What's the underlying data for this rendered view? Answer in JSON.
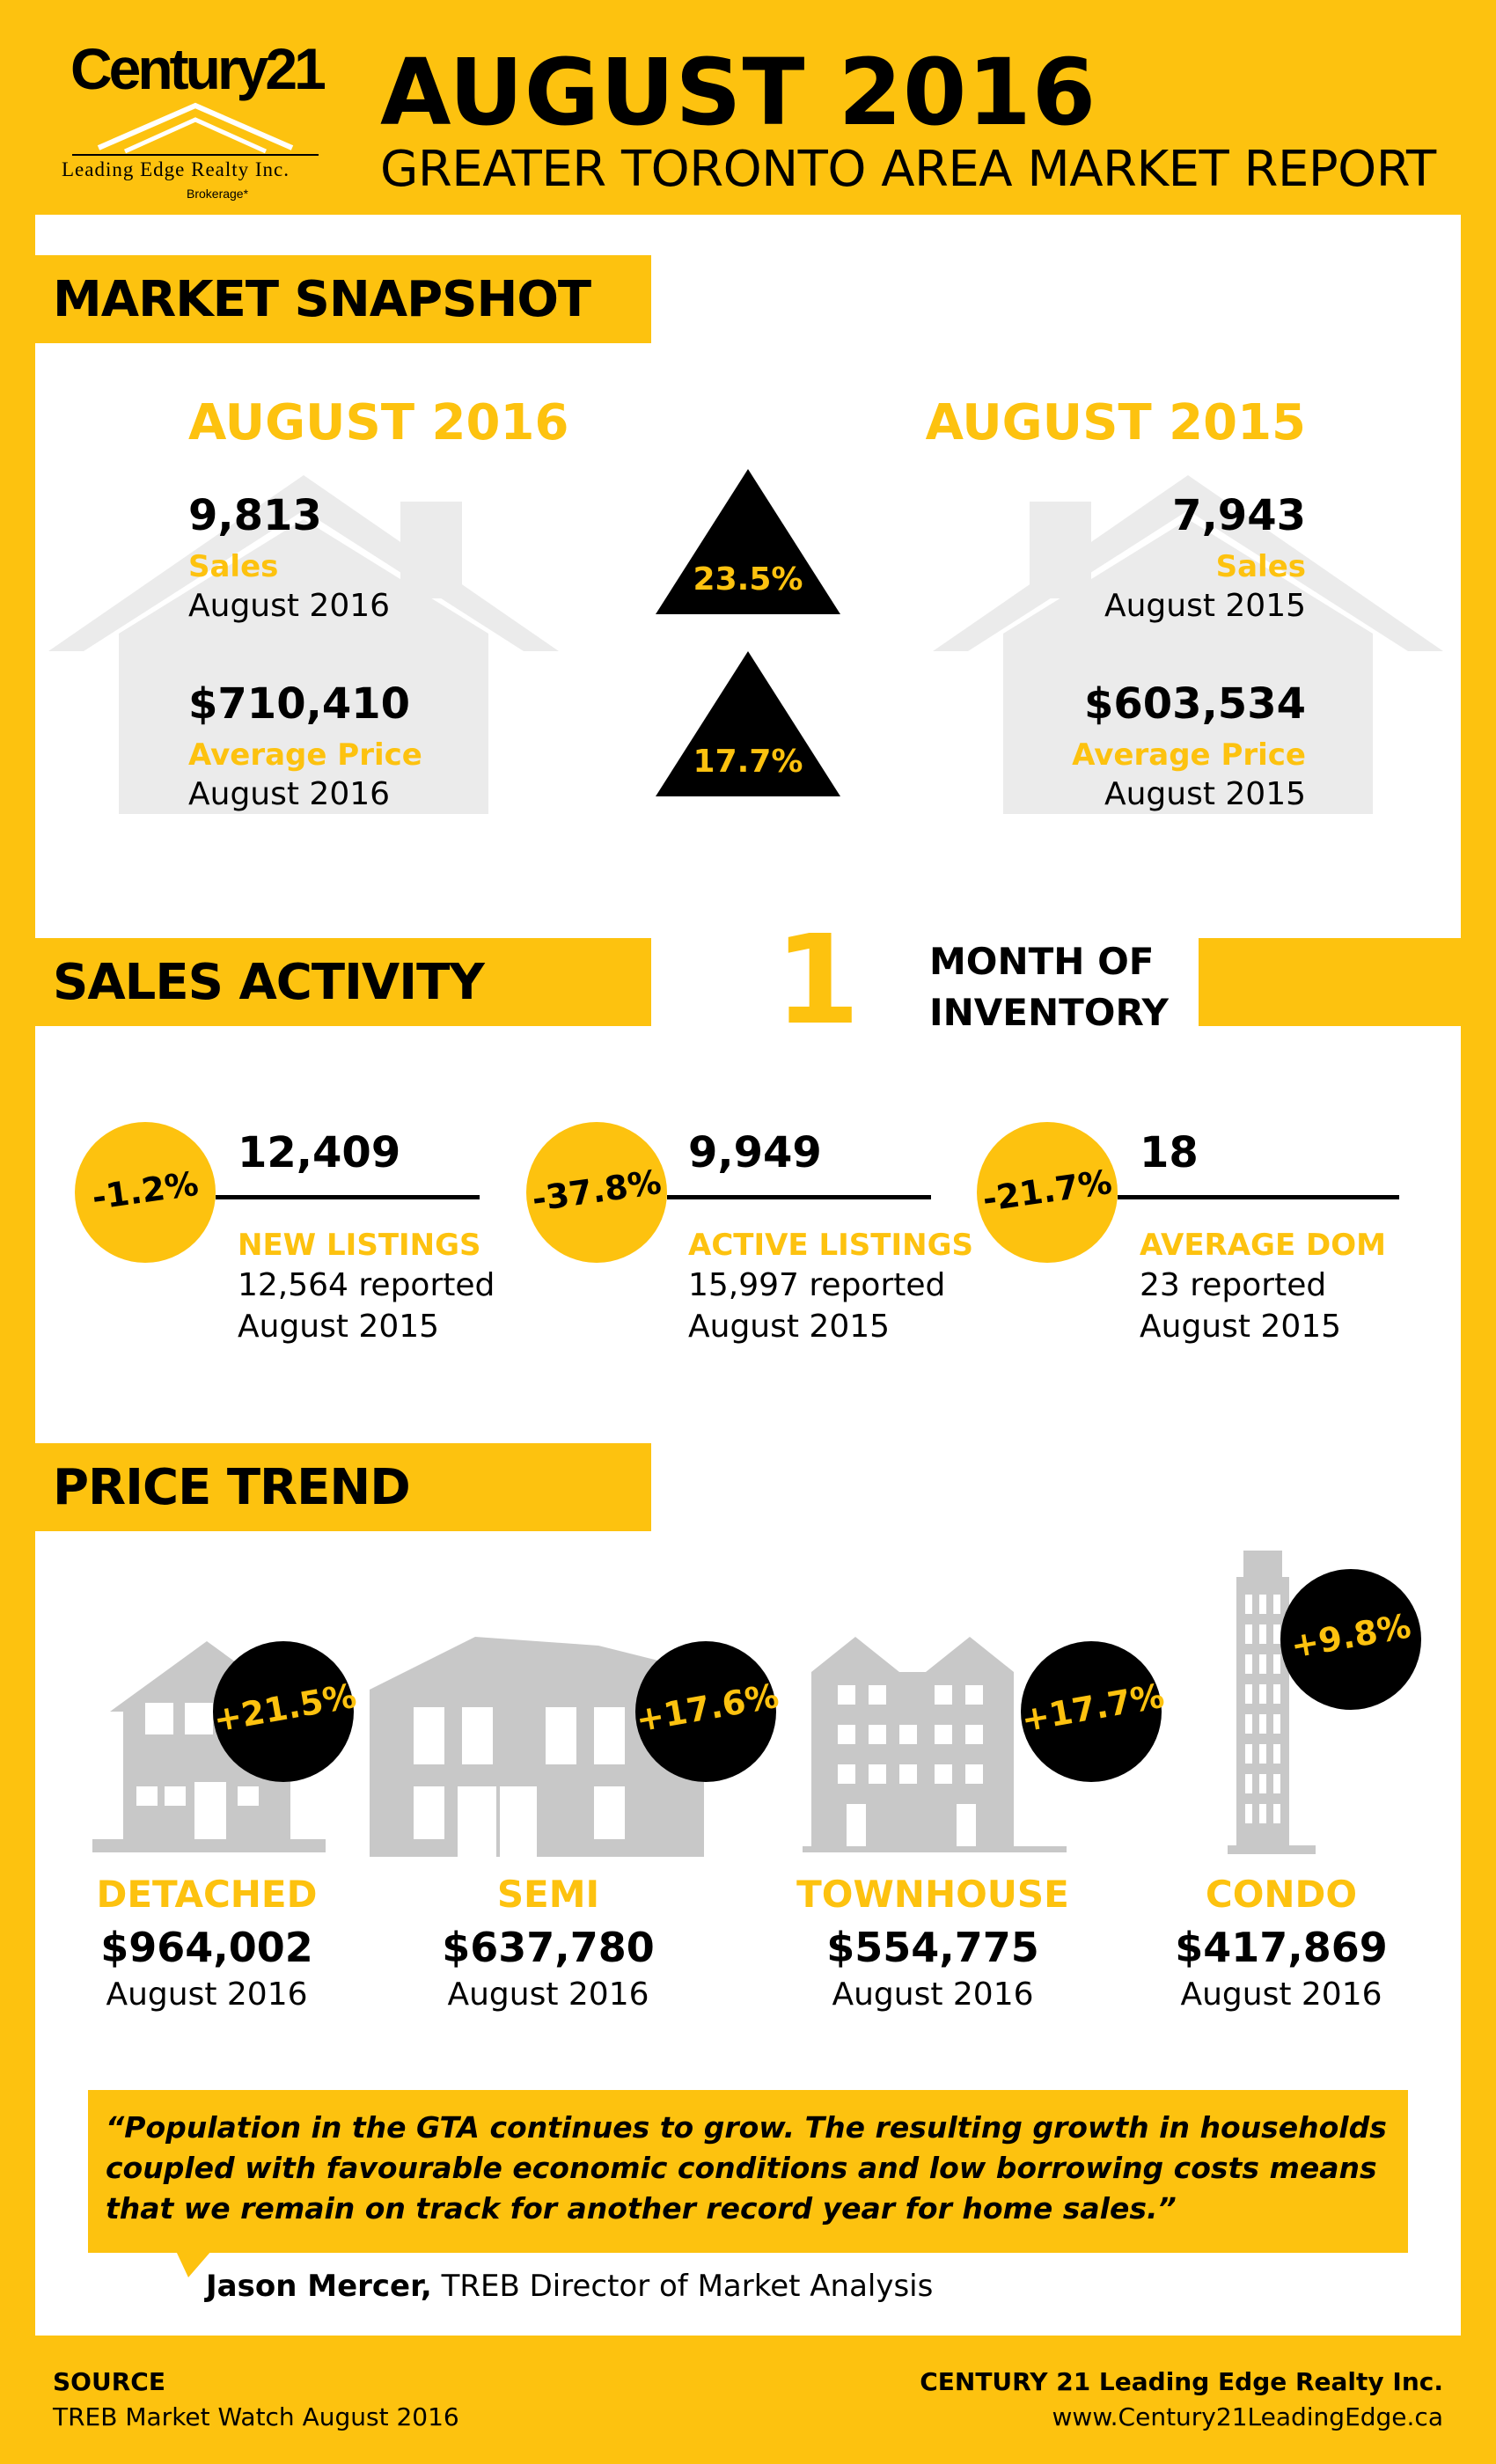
{
  "header": {
    "logo": {
      "brand": "Century21",
      "line1": "Leading Edge Realty Inc.",
      "line2": "Brokerage*"
    },
    "title": "AUGUST 2016",
    "subtitle": "GREATER TORONTO AREA MARKET REPORT"
  },
  "snapshot": {
    "section_title": "MARKET SNAPSHOT",
    "left": {
      "heading": "AUGUST 2016",
      "sales_value": "9,813",
      "sales_label": "Sales",
      "sales_period": "August 2016",
      "price_value": "$710,410",
      "price_label": "Average Price",
      "price_period": "August 2016"
    },
    "right": {
      "heading": "AUGUST 2015",
      "sales_value": "7,943",
      "sales_label": "Sales",
      "sales_period": "August 2015",
      "price_value": "$603,534",
      "price_label": "Average Price",
      "price_period": "August 2015"
    },
    "change_sales": "23.5%",
    "change_price": "17.7%"
  },
  "sales_activity": {
    "section_title": "SALES ACTIVITY",
    "inventory_number": "1",
    "inventory_line1": "MONTH OF",
    "inventory_line2": "INVENTORY",
    "stats": [
      {
        "change": "-1.2%",
        "value": "12,409",
        "label": "NEW LISTINGS",
        "reported": "12,564 reported",
        "period": "August 2015"
      },
      {
        "change": "-37.8%",
        "value": "9,949",
        "label": "ACTIVE LISTINGS",
        "reported": "15,997 reported",
        "period": "August 2015"
      },
      {
        "change": "-21.7%",
        "value": "18",
        "label": "AVERAGE DOM",
        "reported": "23 reported",
        "period": "August 2015"
      }
    ]
  },
  "price_trend": {
    "section_title": "PRICE TREND",
    "types": [
      {
        "change": "+21.5%",
        "label": "DETACHED",
        "price": "$964,002",
        "period": "August 2016"
      },
      {
        "change": "+17.6%",
        "label": "SEMI",
        "price": "$637,780",
        "period": "August 2016"
      },
      {
        "change": "+17.7%",
        "label": "TOWNHOUSE",
        "price": "$554,775",
        "period": "August 2016"
      },
      {
        "change": "+9.8%",
        "label": "CONDO",
        "price": "$417,869",
        "period": "August 2016"
      }
    ]
  },
  "quote": {
    "text": "“Population in the GTA continues to grow. The resulting growth in households coupled with favourable economic conditions and low borrowing costs means that we remain on track for another record year for home sales.”",
    "author": "Jason Mercer,",
    "author_title": " TREB Director of Market Analysis"
  },
  "footer": {
    "source_label": "SOURCE",
    "source_value": "TREB Market Watch August 2016",
    "company": "CENTURY 21 Leading Edge Realty Inc.",
    "website": "www.Century21LeadingEdge.ca"
  },
  "colors": {
    "accent": "#fdc20f",
    "dark": "#000000",
    "building": "#c8c8c8",
    "house_bg": "#ebebeb"
  }
}
